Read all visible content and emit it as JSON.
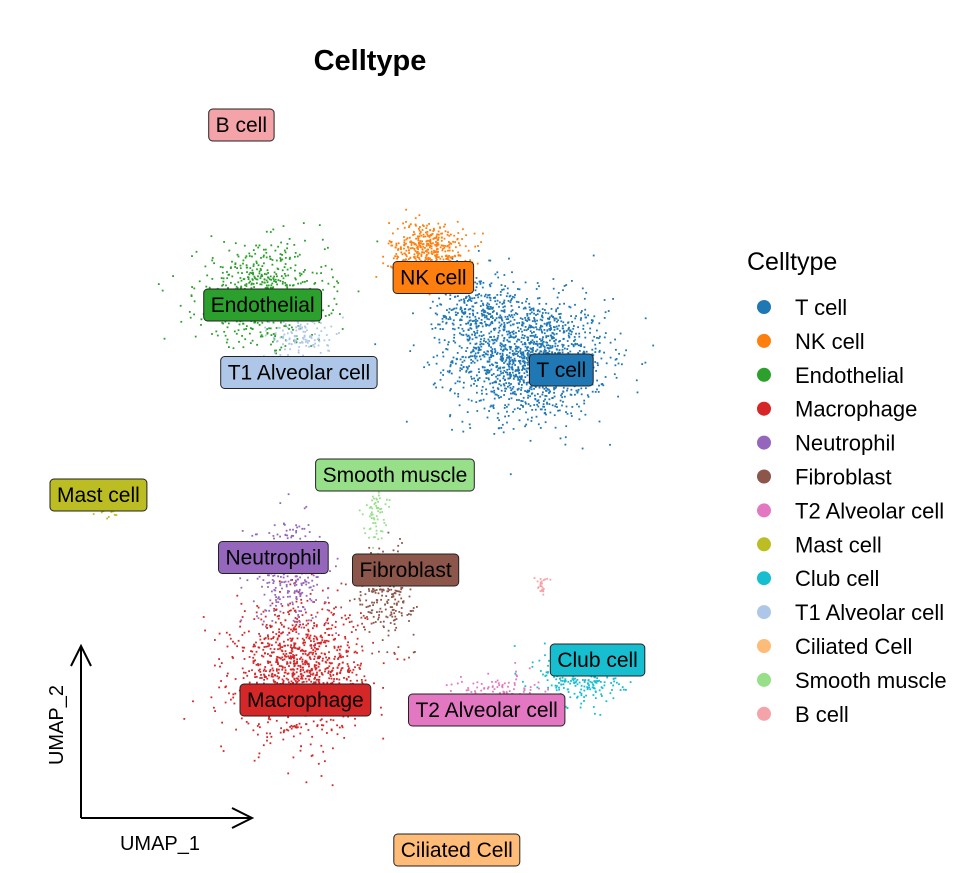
{
  "chart_data": {
    "type": "scatter",
    "title": "Celltype",
    "xlabel": "UMAP_1",
    "ylabel": "UMAP_2",
    "legend": {
      "title": "Celltype",
      "position": "right"
    },
    "grid": false,
    "xlim": [
      -15,
      15
    ],
    "ylim": [
      -15,
      15
    ],
    "series": [
      {
        "name": "T cell",
        "color": "#1F77B4",
        "centroid": [
          8.5,
          5.0
        ],
        "clusters": [
          {
            "cx": 7.0,
            "cy": 5.5,
            "sx": 1.8,
            "sy": 1.2,
            "n": 1500
          },
          {
            "cx": 4.5,
            "cy": 7.5,
            "sx": 1.0,
            "sy": 0.8,
            "n": 300
          }
        ]
      },
      {
        "name": "NK cell",
        "color": "#FF7F0E",
        "centroid": [
          2.5,
          8.7
        ],
        "clusters": [
          {
            "cx": 2.2,
            "cy": 9.8,
            "sx": 0.9,
            "sy": 0.6,
            "n": 450
          }
        ]
      },
      {
        "name": "Endothelial",
        "color": "#2CA02C",
        "centroid": [
          -5.5,
          7.6
        ],
        "clusters": [
          {
            "cx": -5.6,
            "cy": 8.0,
            "sx": 1.5,
            "sy": 1.0,
            "n": 650
          }
        ]
      },
      {
        "name": "Macrophage",
        "color": "#D62728",
        "centroid": [
          -3.5,
          -8.2
        ],
        "clusters": [
          {
            "cx": -3.8,
            "cy": -7.0,
            "sx": 1.5,
            "sy": 1.3,
            "n": 1100
          }
        ]
      },
      {
        "name": "Neutrophil",
        "color": "#9467BD",
        "centroid": [
          -5.0,
          -2.5
        ],
        "clusters": [
          {
            "cx": -4.2,
            "cy": -3.0,
            "sx": 0.9,
            "sy": 1.0,
            "n": 320
          }
        ]
      },
      {
        "name": "Fibroblast",
        "color": "#8C564B",
        "centroid": [
          1.2,
          -3.0
        ],
        "clusters": [
          {
            "cx": 0.2,
            "cy": -3.8,
            "sx": 0.7,
            "sy": 0.9,
            "n": 260
          }
        ]
      },
      {
        "name": "T2 Alveolar cell",
        "color": "#E377C2",
        "centroid": [
          5.0,
          -8.6
        ],
        "clusters": [
          {
            "cx": 5.5,
            "cy": -8.0,
            "sx": 1.1,
            "sy": 0.4,
            "n": 160
          }
        ]
      },
      {
        "name": "Mast cell",
        "color": "#BCBD22",
        "centroid": [
          -13.2,
          0.0
        ],
        "clusters": [
          {
            "cx": -12.9,
            "cy": -0.3,
            "sx": 0.3,
            "sy": 0.35,
            "n": 60
          }
        ]
      },
      {
        "name": "Club cell",
        "color": "#17BECF",
        "centroid": [
          10.2,
          -6.6
        ],
        "clusters": [
          {
            "cx": 9.5,
            "cy": -7.3,
            "sx": 1.0,
            "sy": 0.6,
            "n": 240
          }
        ]
      },
      {
        "name": "T1 Alveolar cell",
        "color": "#AEC7E8",
        "centroid": [
          -3.8,
          4.9
        ],
        "clusters": [
          {
            "cx": -3.7,
            "cy": 6.4,
            "sx": 0.7,
            "sy": 0.4,
            "n": 120
          }
        ]
      },
      {
        "name": "Ciliated Cell",
        "color": "#FFBB78",
        "centroid": [
          3.6,
          -14.2
        ],
        "clusters": []
      },
      {
        "name": "Smooth muscle",
        "color": "#98DF8A",
        "centroid": [
          0.7,
          0.8
        ],
        "clusters": [
          {
            "cx": -0.3,
            "cy": -0.6,
            "sx": 0.25,
            "sy": 0.6,
            "n": 70
          }
        ]
      },
      {
        "name": "B cell",
        "color": "#F4A3A8",
        "centroid": [
          -6.5,
          14.8
        ],
        "clusters": [
          {
            "cx": 7.5,
            "cy": -3.5,
            "sx": 0.15,
            "sy": 0.2,
            "n": 25
          }
        ]
      }
    ]
  }
}
